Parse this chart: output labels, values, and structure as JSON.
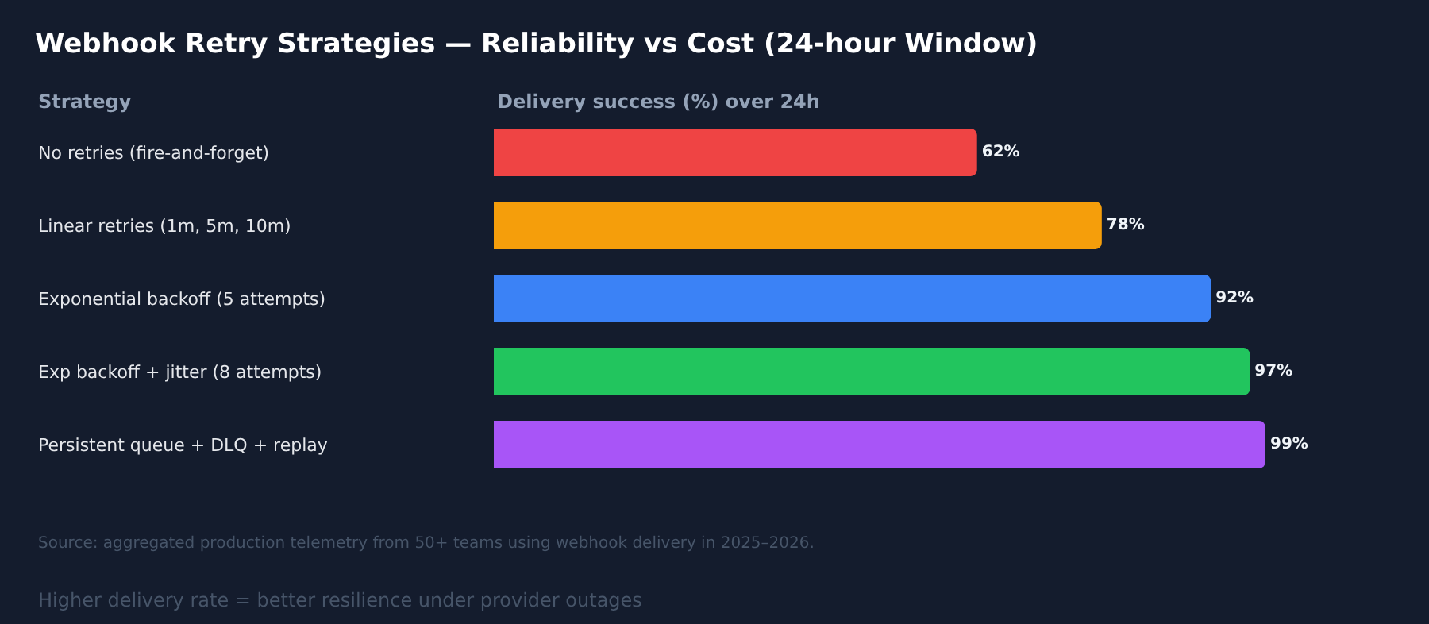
{
  "chart_data": {
    "type": "bar",
    "orientation": "horizontal",
    "title": "Webhook Retry Strategies — Reliability vs Cost (24-hour Window)",
    "ylabel": "Strategy",
    "xlabel": "Delivery success (%) over 24h",
    "categories": [
      "No retries (fire-and-forget)",
      "Linear retries (1m, 5m, 10m)",
      "Exponential backoff (5 attempts)",
      "Exp backoff + jitter (8 attempts)",
      "Persistent queue + DLQ + replay"
    ],
    "values": [
      62,
      78,
      92,
      97,
      99
    ],
    "colors": [
      "#ef4444",
      "#f59e0b",
      "#3b82f6",
      "#22c55e",
      "#a855f7"
    ],
    "value_labels": [
      "62%",
      "78%",
      "92%",
      "97%",
      "99%"
    ],
    "annotations": [
      "Source: aggregated production telemetry from 50+ teams using webhook delivery in 2025–2026.",
      "Higher delivery rate = better resilience under provider outages"
    ]
  }
}
